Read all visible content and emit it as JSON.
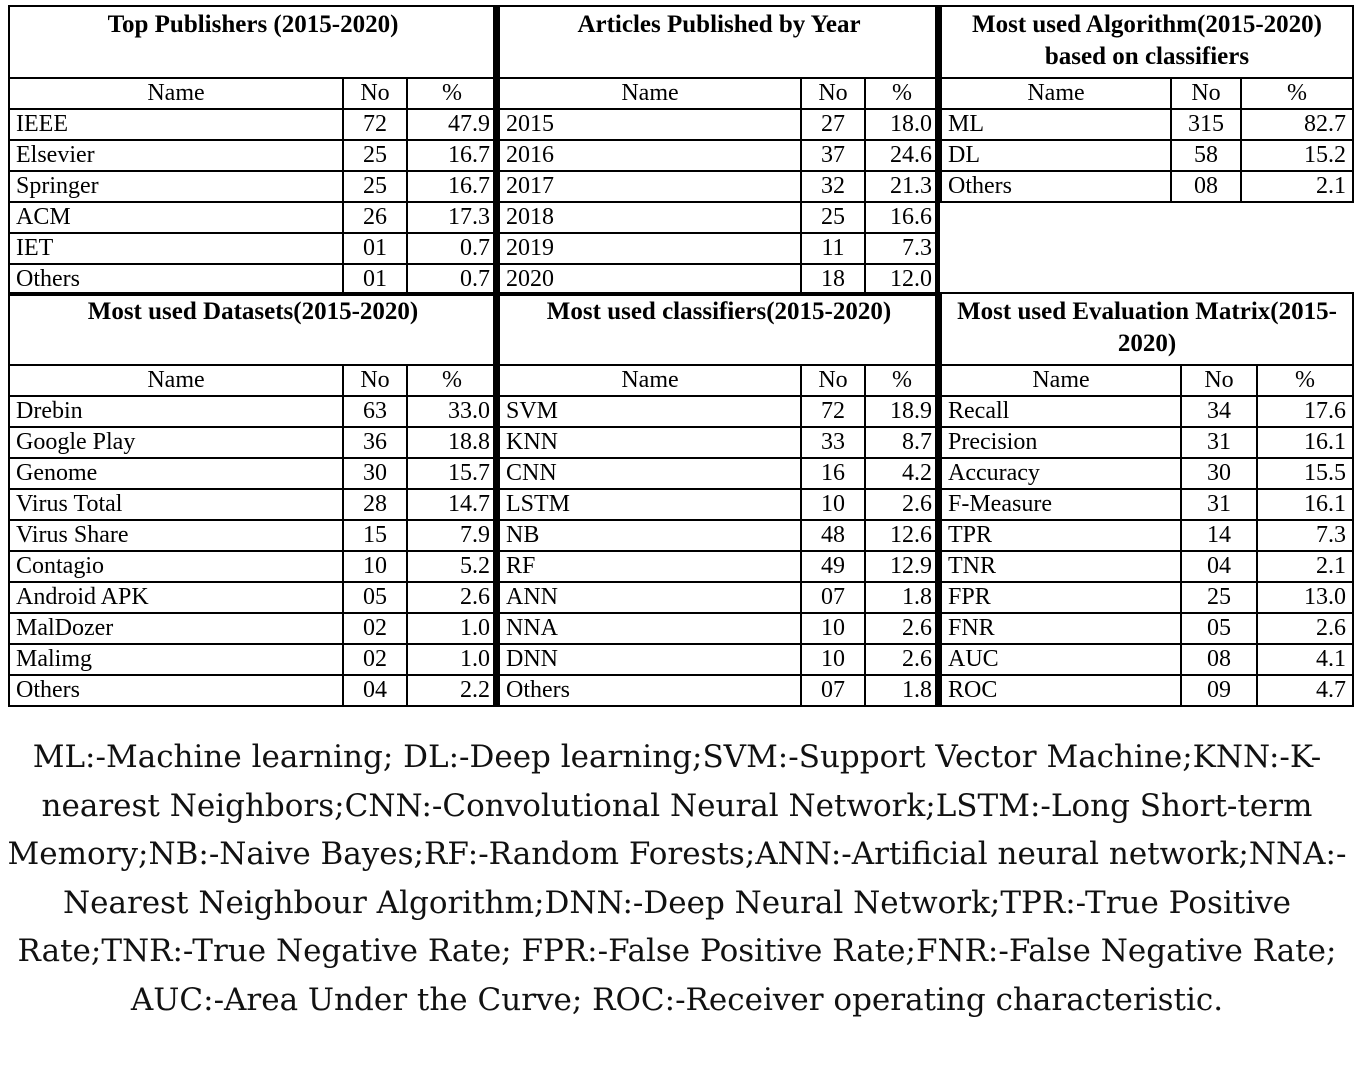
{
  "panels": {
    "publishers": {
      "title": "Top Publishers (2015-2020)",
      "headers": [
        "Name",
        "No",
        "%"
      ],
      "rows": [
        [
          "IEEE",
          "72",
          "47.9"
        ],
        [
          "Elsevier",
          "25",
          "16.7"
        ],
        [
          "Springer",
          "25",
          "16.7"
        ],
        [
          "ACM",
          "26",
          "17.3"
        ],
        [
          "IET",
          "01",
          "0.7"
        ],
        [
          "Others",
          "01",
          "0.7"
        ]
      ]
    },
    "years": {
      "title": "Articles Published by Year",
      "headers": [
        "Name",
        "No",
        "%"
      ],
      "rows": [
        [
          "2015",
          "27",
          "18.0"
        ],
        [
          "2016",
          "37",
          "24.6"
        ],
        [
          "2017",
          "32",
          "21.3"
        ],
        [
          "2018",
          "25",
          "16.6"
        ],
        [
          "2019",
          "11",
          "7.3"
        ],
        [
          "2020",
          "18",
          "12.0"
        ]
      ]
    },
    "algorithm": {
      "title": "Most used Algorithm(2015-2020) based on classifiers",
      "headers": [
        "Name",
        "No",
        "%"
      ],
      "rows": [
        [
          "ML",
          "315",
          "82.7"
        ],
        [
          "DL",
          "58",
          "15.2"
        ],
        [
          "Others",
          "08",
          "2.1"
        ]
      ]
    },
    "datasets": {
      "title": "Most used Datasets(2015-2020)",
      "headers": [
        "Name",
        "No",
        "%"
      ],
      "rows": [
        [
          "Drebin",
          "63",
          "33.0"
        ],
        [
          "Google Play",
          "36",
          "18.8"
        ],
        [
          "Genome",
          "30",
          "15.7"
        ],
        [
          "Virus Total",
          "28",
          "14.7"
        ],
        [
          "Virus Share",
          "15",
          "7.9"
        ],
        [
          "Contagio",
          "10",
          "5.2"
        ],
        [
          "Android APK",
          "05",
          "2.6"
        ],
        [
          "MalDozer",
          "02",
          "1.0"
        ],
        [
          "Malimg",
          "02",
          "1.0"
        ],
        [
          "Others",
          "04",
          "2.2"
        ]
      ]
    },
    "classifiers": {
      "title": "Most used classifiers(2015-2020)",
      "headers": [
        "Name",
        "No",
        "%"
      ],
      "rows": [
        [
          "SVM",
          "72",
          "18.9"
        ],
        [
          "KNN",
          "33",
          "8.7"
        ],
        [
          "CNN",
          "16",
          "4.2"
        ],
        [
          "LSTM",
          "10",
          "2.6"
        ],
        [
          "NB",
          "48",
          "12.6"
        ],
        [
          "RF",
          "49",
          "12.9"
        ],
        [
          "ANN",
          "07",
          "1.8"
        ],
        [
          "NNA",
          "10",
          "2.6"
        ],
        [
          "DNN",
          "10",
          "2.6"
        ],
        [
          "Others",
          "07",
          "1.8"
        ]
      ]
    },
    "evaluation": {
      "title": "Most used Evaluation Matrix(2015-2020)",
      "headers": [
        "Name",
        "No",
        "%"
      ],
      "rows": [
        [
          "Recall",
          "34",
          "17.6"
        ],
        [
          "Precision",
          "31",
          "16.1"
        ],
        [
          "Accuracy",
          "30",
          "15.5"
        ],
        [
          "F-Measure",
          "31",
          "16.1"
        ],
        [
          "TPR",
          "14",
          "7.3"
        ],
        [
          "TNR",
          "04",
          "2.1"
        ],
        [
          "FPR",
          "25",
          "13.0"
        ],
        [
          "FNR",
          "05",
          "2.6"
        ],
        [
          "AUC",
          "08",
          "4.1"
        ],
        [
          "ROC",
          "09",
          "4.7"
        ]
      ]
    }
  },
  "footnote": "ML:-Machine learning; DL:-Deep learning;SVM:-Support Vector Machine;KNN:-K-nearest Neighbors;CNN:-Convolutional Neural Network;LSTM:-Long Short-term Memory;NB:-Naive Bayes;RF:-Random Forests;ANN:-Artificial neural network;NNA:-Nearest Neighbour Algorithm;DNN:-Deep Neural Network;TPR:-True Positive Rate;TNR:-True Negative Rate; FPR:-False Positive Rate;FNR:-False Negative Rate; AUC:-Area Under the Curve; ROC:-Receiver operating characteristic."
}
